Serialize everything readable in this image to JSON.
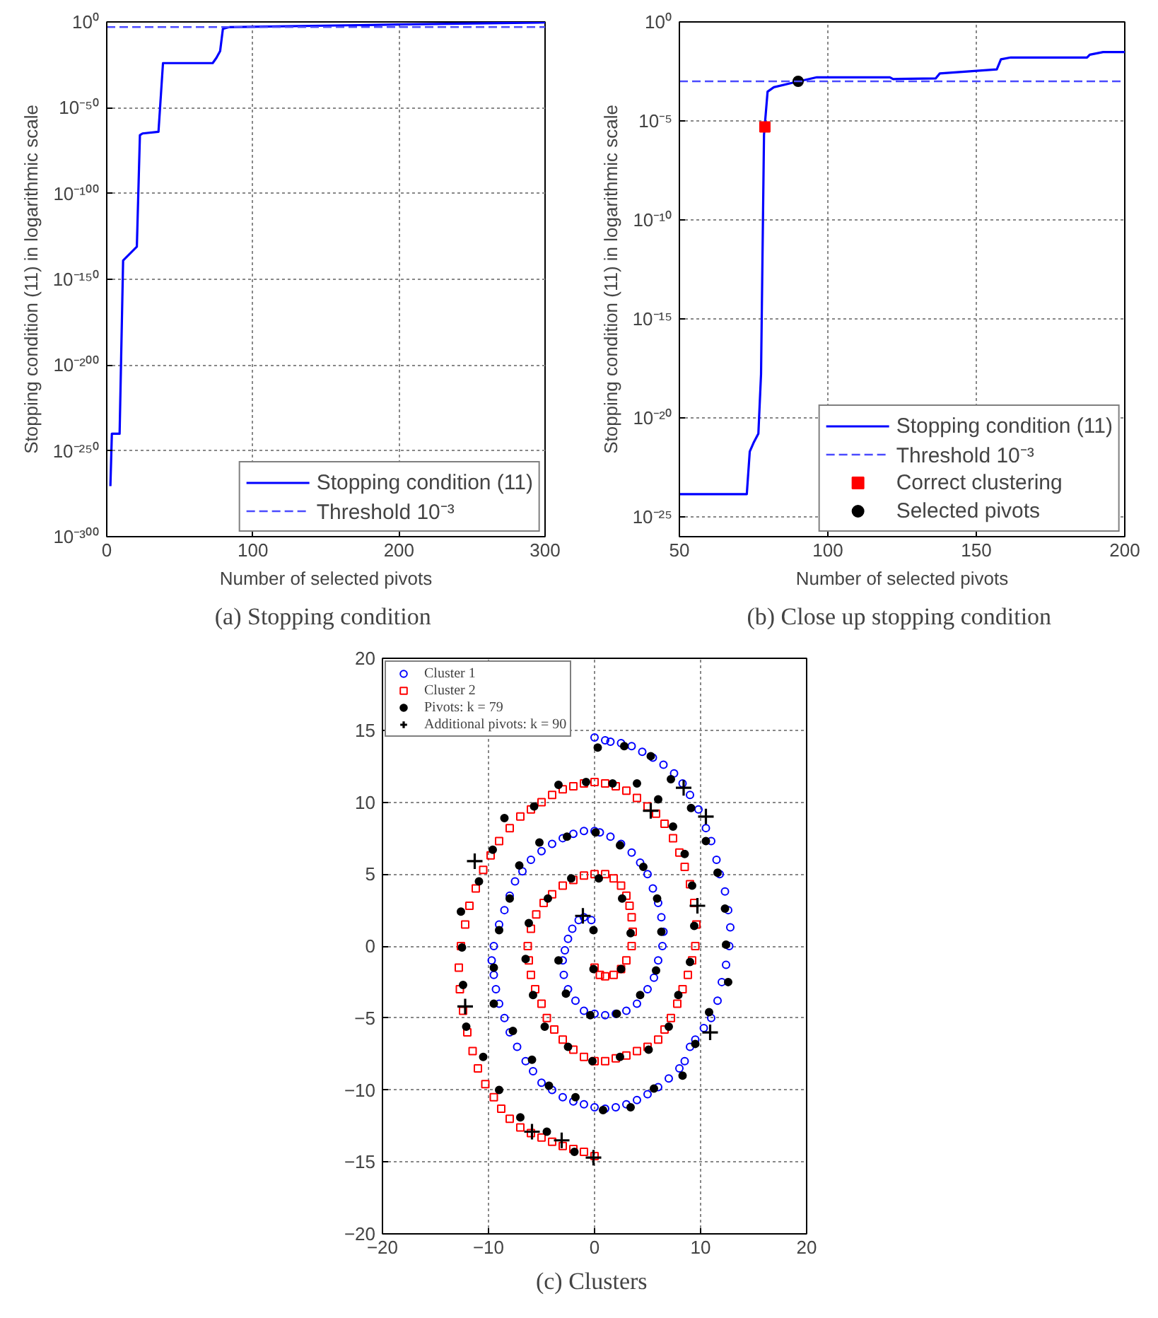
{
  "chart_data": [
    {
      "type": "line",
      "title": "(a)  Stopping condition",
      "xlabel": "Number of selected pivots",
      "ylabel": "Stopping condition (11) in logarithmic scale",
      "log": "y",
      "grid": true,
      "legend": "bottom right",
      "xlim": [
        0,
        300
      ],
      "xticks": [
        0,
        100,
        200,
        300
      ],
      "ylim": [
        1e-300,
        1
      ],
      "yticks": [
        {
          "value": 1e-300,
          "label": "10⁻³⁰⁰"
        },
        {
          "value": 1e-250,
          "label": "10⁻²⁵⁰"
        },
        {
          "value": 1e-200,
          "label": "10⁻²⁰⁰"
        },
        {
          "value": 1e-150,
          "label": "10⁻¹⁵⁰"
        },
        {
          "value": 1e-100,
          "label": "10⁻¹⁰⁰"
        },
        {
          "value": 1e-50,
          "label": "10⁻⁵⁰"
        },
        {
          "value": 1,
          "label": "10⁰"
        }
      ],
      "ref_lines": [
        {
          "axis": "y",
          "value": 0.001,
          "label": "Threshold 10⁻³",
          "color": "#4a4aff",
          "line_style": "dashed"
        }
      ],
      "series": [
        {
          "name": "Stopping condition (11)",
          "color": "#0000ff",
          "line_style": "solid",
          "x": [
            2.5,
            3.5,
            8.8,
            11.2,
            20.6,
            22.7,
            24.5,
            35.4,
            38.5,
            72.5,
            75,
            77.6,
            79.5,
            84,
            199.5,
            300
          ],
          "values": [
            3e-271,
            1e-240,
            1e-240,
            1e-139,
            1e-131,
            1e-66,
            1e-65,
            1e-64,
            1e-24,
            1e-24,
            1e-21,
            1e-17,
            0.0001,
            0.001,
            0.03,
            0.5
          ]
        }
      ]
    },
    {
      "type": "line",
      "title": "(b)  Close up stopping condition",
      "xlabel": "Number of selected pivots",
      "ylabel": "Stopping condition (11) in logarithmic scale",
      "log": "y",
      "grid": true,
      "legend": "bottom right",
      "xlim": [
        50,
        200
      ],
      "xticks": [
        50,
        100,
        150,
        200
      ],
      "ylim": [
        1e-26,
        1
      ],
      "yticks": [
        {
          "value": 1e-25,
          "label": "10⁻²⁵"
        },
        {
          "value": 1e-20,
          "label": "10⁻²⁰"
        },
        {
          "value": 1e-15,
          "label": "10⁻¹⁵"
        },
        {
          "value": 1e-10,
          "label": "10⁻¹⁰"
        },
        {
          "value": 1e-05,
          "label": "10⁻⁵"
        },
        {
          "value": 1,
          "label": "10⁰"
        }
      ],
      "ref_lines": [
        {
          "axis": "y",
          "value": 0.001,
          "label": "Threshold 10⁻³",
          "color": "#4a4aff",
          "line_style": "dashed"
        }
      ],
      "series": [
        {
          "name": "Stopping condition (11)",
          "color": "#0000ff",
          "line_style": "solid",
          "x": [
            50,
            72.7,
            73.7,
            75.1,
            76.6,
            77.5,
            78.5,
            79.7,
            81.8,
            87.4,
            96.3,
            120.9,
            122,
            136.3,
            137.7,
            156.9,
            158.3,
            161.6,
            187.3,
            188.2,
            192.7,
            200
          ],
          "values": [
            1.4e-24,
            1.4e-24,
            2e-22,
            6e-22,
            1.6e-21,
            1.6e-18,
            2e-06,
            0.0003,
            0.0005,
            0.0008,
            0.0016,
            0.0016,
            0.0013,
            0.0014,
            0.0025,
            0.004,
            0.013,
            0.016,
            0.016,
            0.022,
            0.03,
            0.03
          ]
        },
        {
          "name": "Correct clustering",
          "type": "scatter",
          "marker": "square",
          "color": "#ff0000",
          "x": [
            78.8
          ],
          "values": [
            5e-06
          ]
        },
        {
          "name": "Selected pivots",
          "type": "scatter",
          "marker": "circle",
          "color": "#000000",
          "x": [
            90
          ],
          "values": [
            0.001
          ]
        }
      ]
    },
    {
      "type": "scatter",
      "title": "(c)  Clusters",
      "grid": true,
      "legend": "top left",
      "xlim": [
        -20,
        20
      ],
      "xticks": [
        -20,
        -10,
        0,
        10,
        20
      ],
      "ylim": [
        -20,
        20
      ],
      "yticks": [
        -20,
        -15,
        -10,
        -5,
        0,
        5,
        10,
        15,
        20
      ],
      "series": [
        {
          "name": "Cluster 1",
          "marker": "circle",
          "color": "#0000ff",
          "x": [
            -0.3,
            -1.0,
            -1.5,
            -2.1,
            -2.5,
            -2.8,
            -3.0,
            -2.9,
            -2.5,
            -1.8,
            -1.0,
            0.0,
            1.0,
            2.0,
            3.0,
            4.0,
            5.0,
            5.6,
            6.0,
            6.4,
            6.5,
            6.3,
            6.0,
            5.5,
            5.0,
            4.3,
            3.5,
            2.5,
            1.5,
            0.5,
            0.0,
            -1.0,
            -2.0,
            -3.0,
            -4.0,
            -5.0,
            -6.0,
            -6.8,
            -7.5,
            -8.0,
            -8.5,
            -9.0,
            -9.5,
            -9.7,
            -9.5,
            -9.3,
            -9.0,
            -8.5,
            -8.0,
            -7.3,
            -6.5,
            -5.8,
            -5.0,
            -4.0,
            -3.0,
            -2.0,
            -1.0,
            0.0,
            1.0,
            2.0,
            3.0,
            4.0,
            5.0,
            6.0,
            7.0,
            8.0,
            8.5,
            9.0,
            9.5,
            10.3,
            11.0,
            11.6,
            12.0,
            12.4,
            12.7,
            12.8,
            12.6,
            12.3,
            11.8,
            11.5,
            11.0,
            10.5,
            9.8,
            9.0,
            8.3,
            7.5,
            6.5,
            5.5,
            4.5,
            3.5,
            2.5,
            1.5,
            1.0,
            0.0
          ],
          "values": [
            1.8,
            2.0,
            1.8,
            1.2,
            0.5,
            -0.3,
            -1.0,
            -2.0,
            -3.0,
            -3.8,
            -4.5,
            -4.7,
            -4.8,
            -4.7,
            -4.5,
            -4.0,
            -3.0,
            -2.2,
            -1.0,
            0.0,
            1.0,
            2.0,
            3.0,
            4.0,
            5.0,
            5.8,
            6.5,
            7.1,
            7.6,
            7.9,
            8.0,
            8.0,
            7.8,
            7.5,
            7.1,
            6.6,
            6.0,
            5.2,
            4.5,
            3.5,
            2.5,
            1.5,
            0.0,
            -1.0,
            -2.0,
            -3.0,
            -4.0,
            -5.0,
            -6.0,
            -7.0,
            -8.0,
            -8.7,
            -9.5,
            -10.0,
            -10.5,
            -10.8,
            -11.0,
            -11.2,
            -11.3,
            -11.2,
            -11.0,
            -10.7,
            -10.3,
            -9.8,
            -9.2,
            -8.5,
            -8.0,
            -7.0,
            -6.5,
            -5.7,
            -5.0,
            -3.8,
            -2.5,
            -1.3,
            0.0,
            1.3,
            2.5,
            3.8,
            5.0,
            6.0,
            7.3,
            8.2,
            9.5,
            10.5,
            11.3,
            12.0,
            12.6,
            13.1,
            13.5,
            13.9,
            14.1,
            14.2,
            14.3,
            14.5
          ]
        },
        {
          "name": "Cluster 2",
          "marker": "square",
          "color": "#ff0000",
          "x": [
            0.0,
            0.5,
            1.0,
            1.8,
            2.5,
            3.0,
            3.5,
            3.6,
            3.5,
            3.3,
            3.0,
            2.5,
            1.8,
            1.0,
            0.0,
            -1.0,
            -2.0,
            -3.0,
            -4.0,
            -4.8,
            -5.5,
            -6.0,
            -6.3,
            -6.2,
            -6.0,
            -5.6,
            -5.0,
            -4.5,
            -3.8,
            -3.0,
            -2.0,
            -1.0,
            0.0,
            1.0,
            2.0,
            3.0,
            4.0,
            5.0,
            6.0,
            6.6,
            7.2,
            7.8,
            8.3,
            8.8,
            9.2,
            9.5,
            9.6,
            9.4,
            9.0,
            8.5,
            8.0,
            7.4,
            6.6,
            5.8,
            5.0,
            4.0,
            3.0,
            2.0,
            1.0,
            0.0,
            -1.0,
            -2.0,
            -3.0,
            -4.0,
            -5.0,
            -6.0,
            -7.0,
            -8.0,
            -9.0,
            -9.8,
            -10.5,
            -11.2,
            -11.8,
            -12.2,
            -12.6,
            -12.8,
            -12.7,
            -12.4,
            -12.0,
            -11.5,
            -11.0,
            -10.3,
            -9.5,
            -8.8,
            -8.0,
            -7.0,
            -6.0,
            -5.0,
            -4.0,
            -3.0,
            -2.0,
            -1.0,
            0.0
          ],
          "values": [
            -1.5,
            -2.0,
            -2.1,
            -2.0,
            -1.6,
            -1.0,
            0.0,
            1.0,
            2.0,
            2.8,
            3.5,
            4.2,
            4.7,
            5.0,
            5.0,
            4.9,
            4.6,
            4.2,
            3.6,
            3.0,
            2.2,
            1.2,
            0.0,
            -1.0,
            -2.0,
            -3.0,
            -4.0,
            -5.0,
            -5.8,
            -6.5,
            -7.2,
            -7.7,
            -8.0,
            -8.0,
            -7.8,
            -7.6,
            -7.3,
            -7.0,
            -6.5,
            -5.8,
            -5.0,
            -4.0,
            -3.0,
            -2.0,
            -1.0,
            0.0,
            1.5,
            3.0,
            4.3,
            5.5,
            6.5,
            7.5,
            8.5,
            9.2,
            9.7,
            10.3,
            10.8,
            11.1,
            11.3,
            11.4,
            11.3,
            11.1,
            10.9,
            10.5,
            10.0,
            9.5,
            9.0,
            8.2,
            7.3,
            6.3,
            5.3,
            4.0,
            2.8,
            1.5,
            0.0,
            -1.5,
            -3.0,
            -4.5,
            -6.0,
            -7.3,
            -8.5,
            -9.6,
            -10.5,
            -11.3,
            -12.0,
            -12.6,
            -13.0,
            -13.3,
            -13.6,
            -13.9,
            -14.1,
            -14.3,
            -14.6
          ]
        },
        {
          "name": "Pivots: k = 79",
          "marker": "circle",
          "color": "#000000",
          "x": [
            0.3,
            2.8,
            5.3,
            7.2,
            9.1,
            10.5,
            11.6,
            12.3,
            12.4,
            12.6,
            10.8,
            9.5,
            8.3,
            5.6,
            3.4,
            0.8,
            -1.8,
            -4.3,
            -5.9,
            -7.7,
            -9.5,
            -9.5,
            -9.0,
            -8.0,
            -7.1,
            -5.2,
            -2.6,
            0.1,
            2.4,
            4.6,
            5.9,
            6.3,
            5.8,
            4.3,
            2.1,
            -0.4,
            -2.7,
            -3.4,
            -0.1,
            -0.1,
            2.5,
            3.4,
            2.6,
            0.4,
            -2.2,
            -4.4,
            -6.2,
            -6.5,
            -5.8,
            -4.7,
            -2.5,
            -0.2,
            2.4,
            5.1,
            7.0,
            7.9,
            9.0,
            9.4,
            9.2,
            8.5,
            7.4,
            6.0,
            4.0,
            1.7,
            -0.8,
            -3.4,
            -5.7,
            -8.5,
            -9.6,
            -10.9,
            -12.6,
            -12.5,
            -12.4,
            -12.1,
            -10.5,
            -9.0,
            -7.0,
            -4.5,
            -1.9
          ],
          "values": [
            13.8,
            13.9,
            13.2,
            11.6,
            9.6,
            7.3,
            5.1,
            2.6,
            0.1,
            -2.5,
            -4.6,
            -6.8,
            -9.0,
            -9.9,
            -11.2,
            -11.4,
            -10.5,
            -9.7,
            -7.9,
            -5.9,
            -4.0,
            -1.5,
            1.1,
            3.3,
            5.6,
            7.2,
            7.6,
            7.9,
            7.0,
            5.5,
            3.3,
            1.0,
            -1.7,
            -3.4,
            -4.7,
            -4.8,
            -3.3,
            -1.0,
            1.1,
            -1.6,
            -1.6,
            0.9,
            3.3,
            4.7,
            4.7,
            3.3,
            1.6,
            -0.9,
            -3.4,
            -5.6,
            -7.0,
            -8.0,
            -7.7,
            -7.2,
            -5.6,
            -3.4,
            -1.1,
            1.4,
            4.2,
            6.4,
            8.3,
            10.2,
            11.3,
            11.3,
            11.4,
            11.2,
            9.7,
            8.9,
            6.7,
            4.5,
            2.4,
            -0.1,
            -2.7,
            -5.6,
            -7.7,
            -10.0,
            -11.9,
            -12.9,
            -14.3
          ]
        },
        {
          "name": "Additional pivots: k = 90",
          "marker": "cross",
          "color": "#000000",
          "x": [
            8.4,
            5.3,
            10.5,
            -11.3,
            9.7,
            -1.1,
            -12.2,
            10.9,
            -5.9,
            -3.1,
            -0.1
          ],
          "values": [
            11.0,
            9.4,
            9.0,
            5.9,
            2.8,
            2.1,
            -4.2,
            -6.0,
            -12.9,
            -13.5,
            -14.7
          ]
        }
      ]
    }
  ]
}
